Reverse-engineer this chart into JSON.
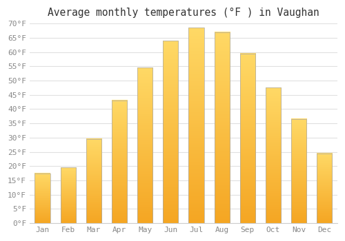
{
  "title": "Average monthly temperatures (°F ) in Vaughan",
  "months": [
    "Jan",
    "Feb",
    "Mar",
    "Apr",
    "May",
    "Jun",
    "Jul",
    "Aug",
    "Sep",
    "Oct",
    "Nov",
    "Dec"
  ],
  "values": [
    17.5,
    19.5,
    29.5,
    43.0,
    54.5,
    64.0,
    68.5,
    67.0,
    59.5,
    47.5,
    36.5,
    24.5
  ],
  "bar_color_bottom": "#F5A623",
  "bar_color_top": "#FFD966",
  "bar_edge_color": "#aaaaaa",
  "background_color": "#ffffff",
  "plot_bg_color": "#ffffff",
  "grid_color": "#e0e0e0",
  "ylim": [
    0,
    70
  ],
  "yticks": [
    0,
    5,
    10,
    15,
    20,
    25,
    30,
    35,
    40,
    45,
    50,
    55,
    60,
    65,
    70
  ],
  "title_fontsize": 10.5,
  "tick_fontsize": 8,
  "tick_color": "#888888",
  "title_color": "#333333",
  "bar_width": 0.6,
  "figsize": [
    5.0,
    3.5
  ],
  "dpi": 100
}
